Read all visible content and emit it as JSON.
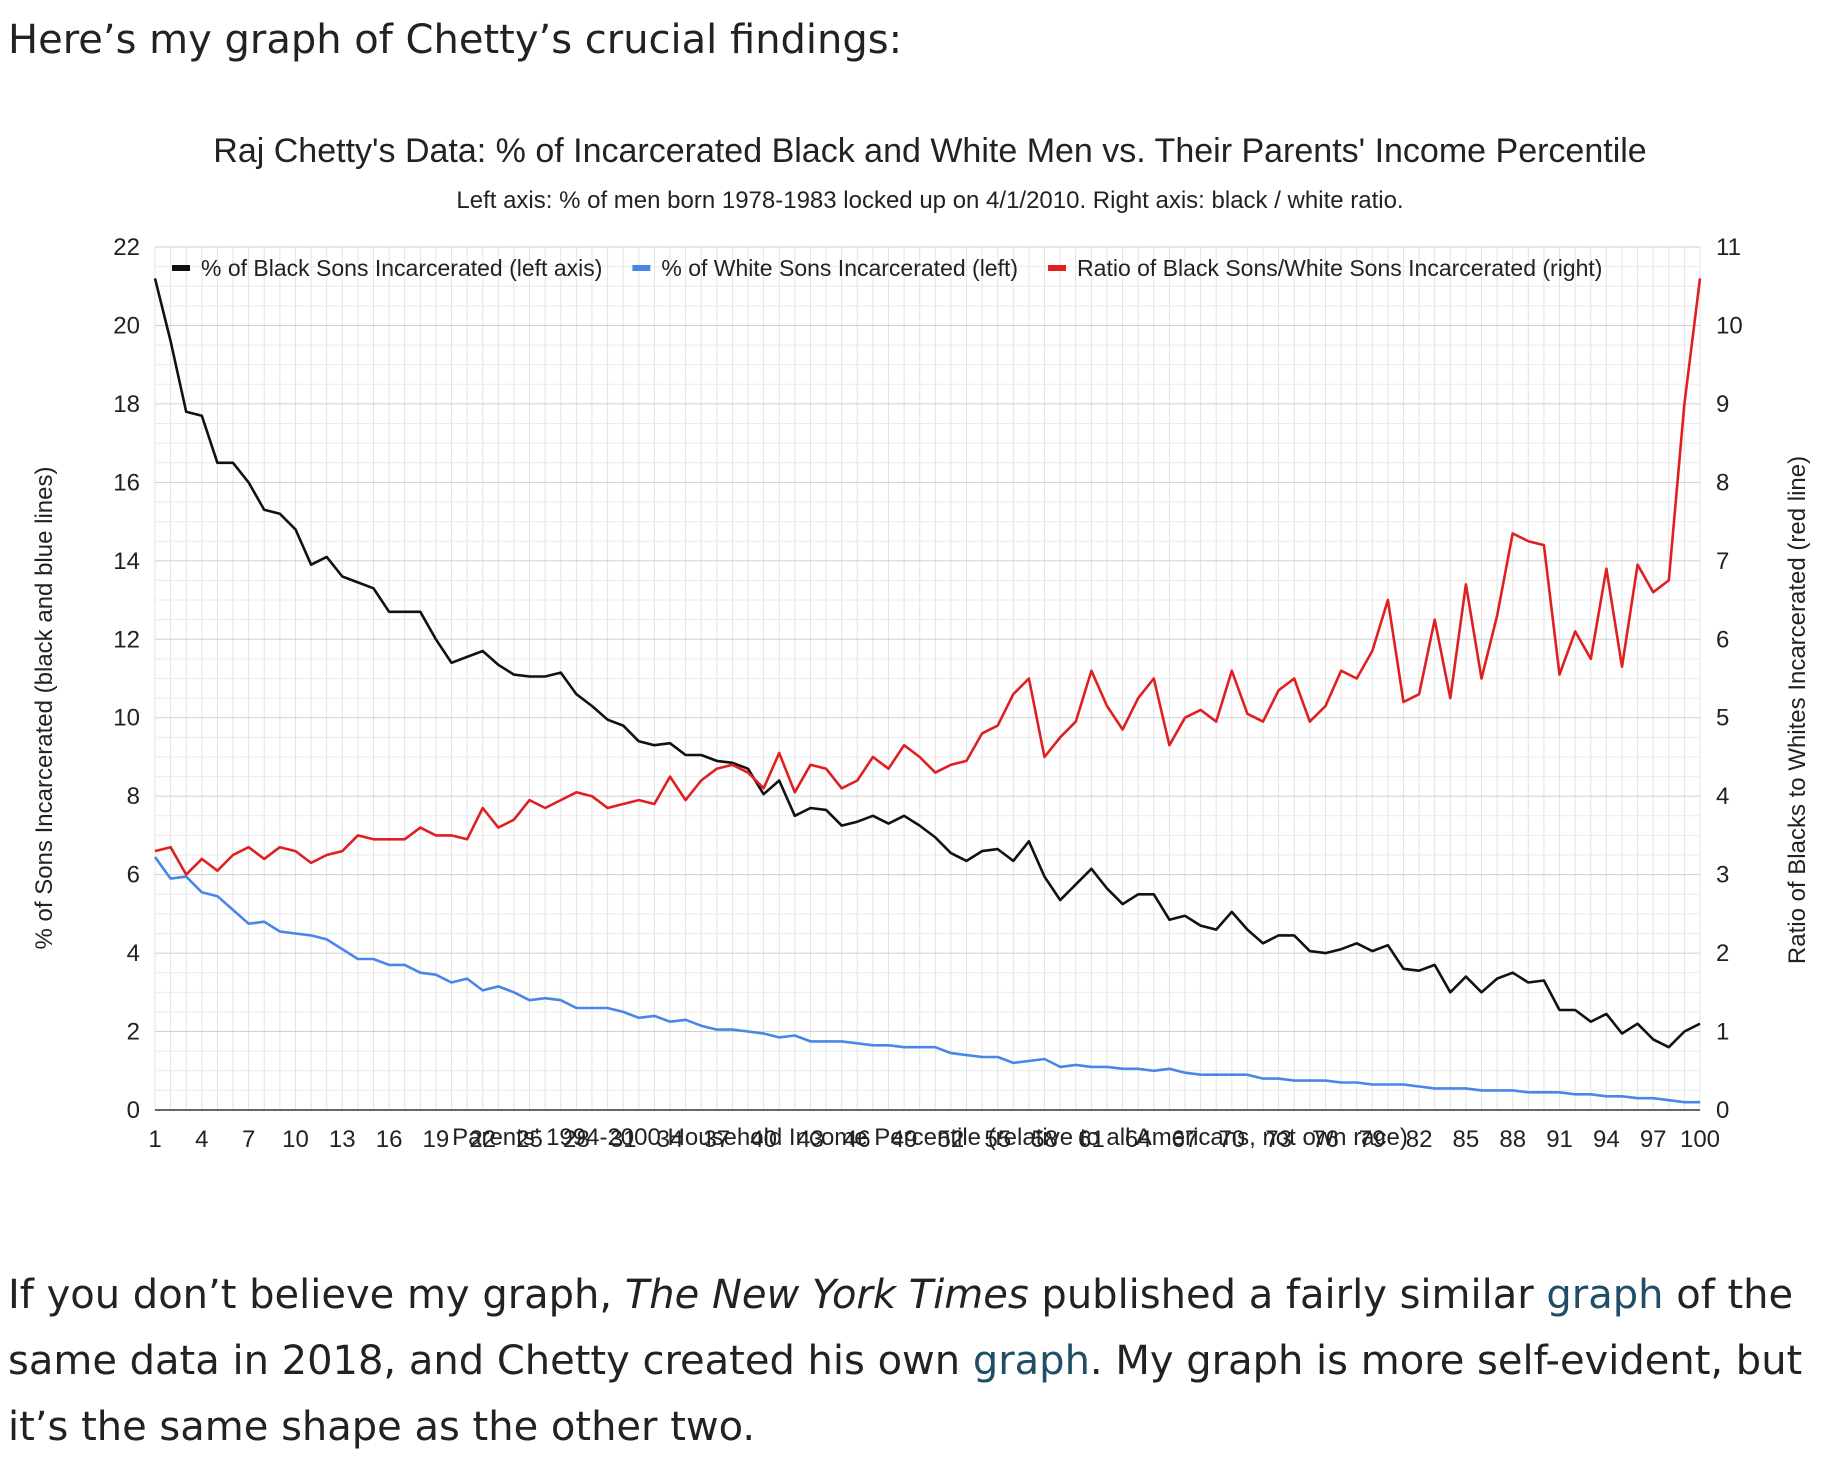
{
  "intro_text": "Here’s my graph of Chetty’s crucial findings:",
  "outro": {
    "part1": "If you don’t believe my graph, ",
    "nyt": "The New York Times",
    "part2": " published a fairly similar ",
    "link1": "graph",
    "part3": " of the same data in 2018, and Chetty created his own ",
    "link2": "graph",
    "part4": ". My graph is more self-evident, but it’s the same shape as the other two."
  },
  "chart_data": {
    "type": "line",
    "title": "Raj Chetty's Data: % of Incarcerated Black and White Men vs. Their Parents' Income Percentile",
    "subtitle": "Left axis: % of men born 1978-1983 locked up on 4/1/2010. Right axis: black / white ratio.",
    "xlabel": "Parents' 1994-2000 Household Income Percentile (relative to all Americans, not own race)",
    "ylabel_left": "% of Sons Incarcerated (black and blue lines)",
    "ylabel_right": "Ratio of Blacks to Whites Incarcerated (red line)",
    "xlim": [
      1,
      100
    ],
    "ylim_left": [
      0,
      22
    ],
    "ylim_right": [
      0,
      11
    ],
    "x_ticks": [
      "1",
      "4",
      "7",
      "10",
      "13",
      "16",
      "19",
      "22",
      "25",
      "28",
      "31",
      "34",
      "37",
      "40",
      "43",
      "46",
      "49",
      "52",
      "55",
      "58",
      "61",
      "64",
      "67",
      "70",
      "73",
      "76",
      "79",
      "82",
      "85",
      "88",
      "91",
      "94",
      "97",
      "100"
    ],
    "y_ticks_left": [
      "0",
      "2",
      "4",
      "6",
      "8",
      "10",
      "12",
      "14",
      "16",
      "18",
      "20",
      "22"
    ],
    "y_ticks_right": [
      "0",
      "1",
      "2",
      "3",
      "4",
      "5",
      "6",
      "7",
      "8",
      "9",
      "10",
      "11"
    ],
    "legend_position": "top",
    "grid": true,
    "series": [
      {
        "name": "% of Black Sons Incarcerated (left axis)",
        "color": "#111111",
        "axis": "left",
        "values": [
          21.2,
          19.6,
          17.8,
          17.7,
          16.5,
          16.5,
          16.0,
          15.3,
          15.2,
          14.8,
          13.9,
          14.1,
          13.6,
          13.45,
          13.3,
          12.7,
          12.7,
          12.7,
          12.0,
          11.4,
          11.55,
          11.7,
          11.35,
          11.1,
          11.05,
          11.05,
          11.15,
          10.6,
          10.3,
          9.95,
          9.8,
          9.4,
          9.3,
          9.35,
          9.05,
          9.05,
          8.9,
          8.85,
          8.7,
          8.05,
          8.4,
          7.5,
          7.7,
          7.65,
          7.25,
          7.35,
          7.5,
          7.3,
          7.5,
          7.25,
          6.95,
          6.55,
          6.35,
          6.6,
          6.65,
          6.35,
          6.85,
          5.95,
          5.35,
          5.75,
          6.15,
          5.65,
          5.25,
          5.5,
          5.5,
          4.85,
          4.95,
          4.7,
          4.6,
          5.05,
          4.6,
          4.25,
          4.45,
          4.45,
          4.05,
          4.0,
          4.1,
          4.25,
          4.05,
          4.2,
          3.6,
          3.55,
          3.7,
          3.0,
          3.4,
          3.0,
          3.35,
          3.5,
          3.25,
          3.3,
          2.55,
          2.55,
          2.25,
          2.45,
          1.95,
          2.2,
          1.8,
          1.6,
          2.0,
          2.2
        ]
      },
      {
        "name": "% of White Sons Incarcerated (left)",
        "color": "#4a86e8",
        "axis": "left",
        "values": [
          6.45,
          5.9,
          5.95,
          5.55,
          5.45,
          5.1,
          4.75,
          4.8,
          4.55,
          4.5,
          4.45,
          4.35,
          4.1,
          3.85,
          3.85,
          3.7,
          3.7,
          3.5,
          3.45,
          3.25,
          3.35,
          3.05,
          3.15,
          3.0,
          2.8,
          2.85,
          2.8,
          2.6,
          2.6,
          2.6,
          2.5,
          2.35,
          2.4,
          2.25,
          2.3,
          2.15,
          2.05,
          2.05,
          2.0,
          1.95,
          1.85,
          1.9,
          1.75,
          1.75,
          1.75,
          1.7,
          1.65,
          1.65,
          1.6,
          1.6,
          1.6,
          1.45,
          1.4,
          1.35,
          1.35,
          1.2,
          1.25,
          1.3,
          1.1,
          1.15,
          1.1,
          1.1,
          1.05,
          1.05,
          1.0,
          1.05,
          0.95,
          0.9,
          0.9,
          0.9,
          0.9,
          0.8,
          0.8,
          0.75,
          0.75,
          0.75,
          0.7,
          0.7,
          0.65,
          0.65,
          0.65,
          0.6,
          0.55,
          0.55,
          0.55,
          0.5,
          0.5,
          0.5,
          0.45,
          0.45,
          0.45,
          0.4,
          0.4,
          0.35,
          0.35,
          0.3,
          0.3,
          0.25,
          0.2,
          0.2
        ]
      },
      {
        "name": "Ratio of Black Sons/White Sons Incarcerated (right)",
        "color": "#e02020",
        "axis": "right",
        "values": [
          3.3,
          3.35,
          3.0,
          3.2,
          3.05,
          3.25,
          3.35,
          3.2,
          3.35,
          3.3,
          3.15,
          3.25,
          3.3,
          3.5,
          3.45,
          3.45,
          3.45,
          3.6,
          3.5,
          3.5,
          3.45,
          3.85,
          3.6,
          3.7,
          3.95,
          3.85,
          3.95,
          4.05,
          4.0,
          3.85,
          3.9,
          3.95,
          3.9,
          4.25,
          3.95,
          4.2,
          4.35,
          4.4,
          4.3,
          4.1,
          4.55,
          4.05,
          4.4,
          4.35,
          4.1,
          4.2,
          4.5,
          4.35,
          4.65,
          4.5,
          4.3,
          4.4,
          4.45,
          4.8,
          4.9,
          5.3,
          5.5,
          4.5,
          4.75,
          4.95,
          5.6,
          5.15,
          4.85,
          5.25,
          5.5,
          4.65,
          5.0,
          5.1,
          4.95,
          5.6,
          5.05,
          4.95,
          5.35,
          5.5,
          4.95,
          5.15,
          5.6,
          5.5,
          5.85,
          6.5,
          5.2,
          5.3,
          6.25,
          5.25,
          6.7,
          5.5,
          6.3,
          7.35,
          7.25,
          7.2,
          5.55,
          6.1,
          5.75,
          6.9,
          5.65,
          6.95,
          6.6,
          6.75,
          9.0,
          10.6
        ]
      }
    ]
  }
}
